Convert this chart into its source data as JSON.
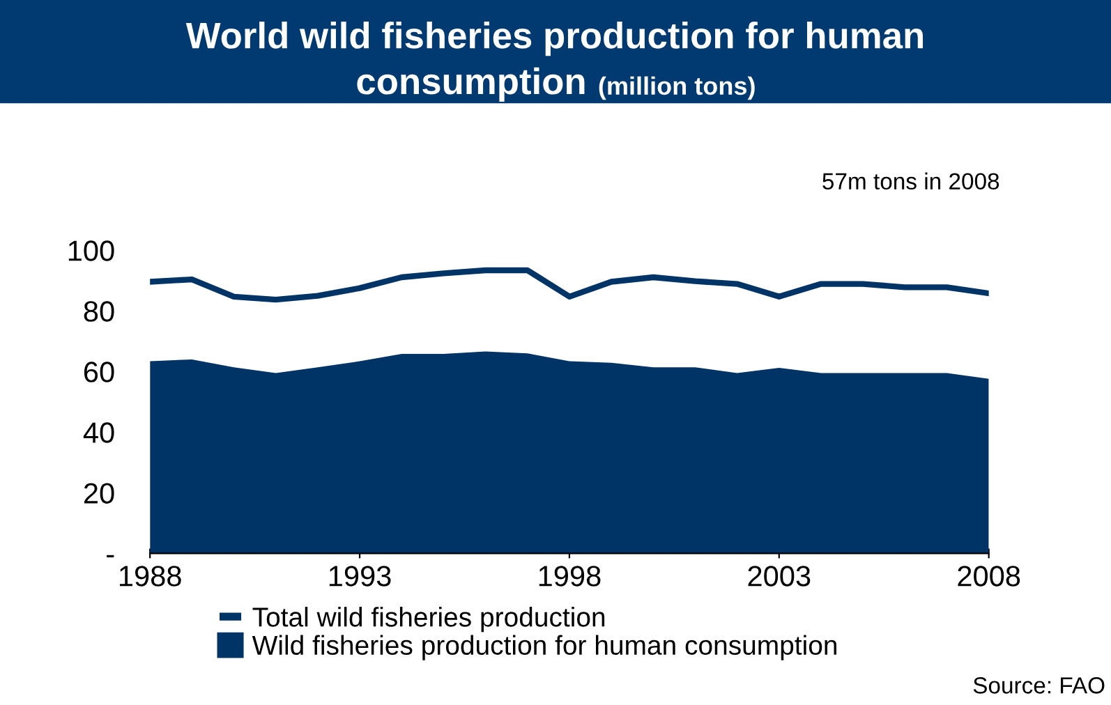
{
  "chart_data": {
    "type": "area",
    "title": "World wild fisheries production for human consumption",
    "subtitle": "(million tons)",
    "x": [
      1988,
      1989,
      1990,
      1991,
      1992,
      1993,
      1994,
      1995,
      1996,
      1997,
      1998,
      1999,
      2000,
      2001,
      2002,
      2003,
      2004,
      2005,
      2006,
      2007,
      2008
    ],
    "series": [
      {
        "name": "Total wild fisheries production",
        "type": "line",
        "color": "#003366",
        "values": [
          89.6,
          90.4,
          84.7,
          83.7,
          85,
          87.5,
          91.1,
          92.4,
          93.4,
          93.4,
          84.7,
          89.6,
          91.1,
          89.8,
          88.9,
          84.7,
          88.9,
          88.9,
          87.8,
          87.8,
          85.8
        ]
      },
      {
        "name": "Wild fisheries production for human consumption",
        "color": "#003366",
        "values": [
          63.4,
          64,
          61.4,
          59.5,
          61.4,
          63.4,
          65.8,
          65.8,
          66.6,
          66,
          63.4,
          62.9,
          61.4,
          61.4,
          59.5,
          61.2,
          59.5,
          59.5,
          59.5,
          59.5,
          57.6
        ]
      }
    ],
    "xlim": [
      1988,
      2008
    ],
    "xticks": [
      1988,
      1993,
      1998,
      2003,
      2008
    ],
    "ylim": [
      0,
      100
    ],
    "yticks": [
      {
        "value": 0,
        "label": "-"
      },
      20,
      40,
      60,
      80,
      100
    ],
    "grid": false,
    "legend": "bottom",
    "annotations": [
      "57m tons in 2008",
      "Source: FAO"
    ]
  }
}
